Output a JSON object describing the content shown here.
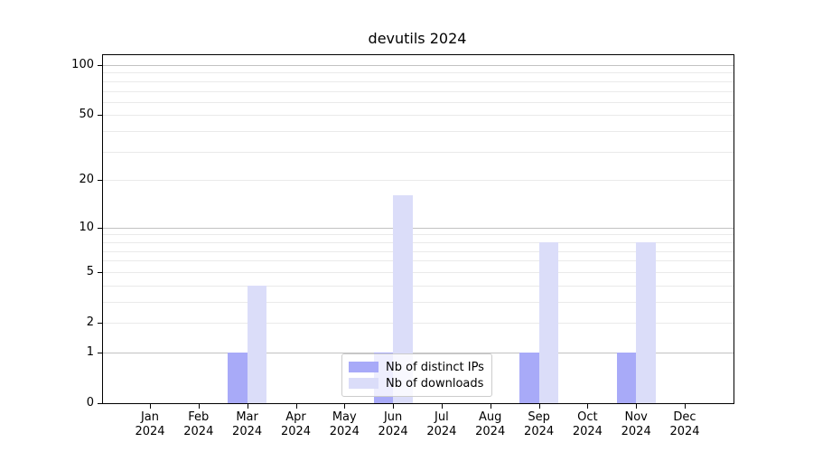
{
  "title": "devutils 2024",
  "chart_data": {
    "type": "bar",
    "title": "devutils 2024",
    "xlabel": "",
    "ylabel": "",
    "scale": "log10(1+x)",
    "grid": "on",
    "legend_position": "lower-center",
    "yticks": [
      0,
      1,
      2,
      5,
      10,
      20,
      50,
      100
    ],
    "minor_gridlines": [
      2,
      3,
      4,
      5,
      6,
      7,
      8,
      9,
      20,
      30,
      40,
      50,
      60,
      70,
      80,
      90
    ],
    "major_gridlines": [
      1,
      10,
      100
    ],
    "ylim": [
      0,
      115
    ],
    "categories": [
      {
        "month": "Jan",
        "year": "2024"
      },
      {
        "month": "Feb",
        "year": "2024"
      },
      {
        "month": "Mar",
        "year": "2024"
      },
      {
        "month": "Apr",
        "year": "2024"
      },
      {
        "month": "May",
        "year": "2024"
      },
      {
        "month": "Jun",
        "year": "2024"
      },
      {
        "month": "Jul",
        "year": "2024"
      },
      {
        "month": "Aug",
        "year": "2024"
      },
      {
        "month": "Sep",
        "year": "2024"
      },
      {
        "month": "Oct",
        "year": "2024"
      },
      {
        "month": "Nov",
        "year": "2024"
      },
      {
        "month": "Dec",
        "year": "2024"
      }
    ],
    "series": [
      {
        "name": "Nb of distinct IPs",
        "color": "#a8aaf8",
        "values": [
          0,
          0,
          1,
          0,
          0,
          1,
          0,
          0,
          1,
          0,
          1,
          0
        ]
      },
      {
        "name": "Nb of downloads",
        "color": "#dbddf9",
        "values": [
          0,
          0,
          4,
          0,
          0,
          16,
          0,
          0,
          8,
          0,
          8,
          0
        ]
      }
    ]
  }
}
